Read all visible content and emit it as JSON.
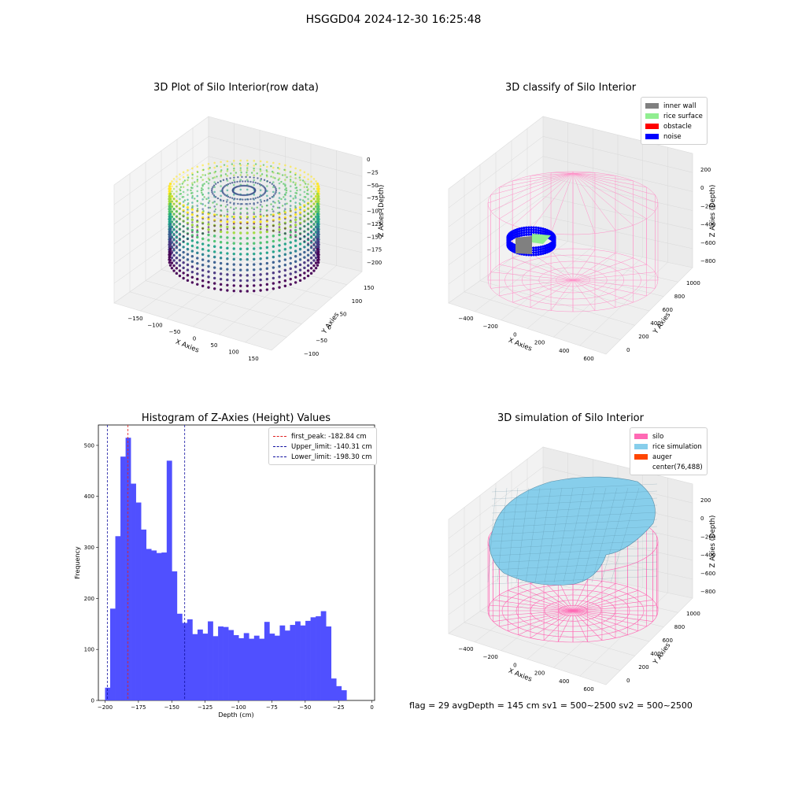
{
  "figure": {
    "suptitle": "HSGGD04 2024-12-30 16:25:48",
    "status_line": "flag = 29  avgDepth = 145 cm  sv1 = 500~2500  sv2 = 500~2500"
  },
  "colors": {
    "hist_bar": "#5050ff",
    "first_peak": "#e02020",
    "limits": "#1010a0",
    "inner_wall": "#808080",
    "rice_surface": "#90ee90",
    "obstacle": "#ff0000",
    "noise": "#0000ff",
    "silo": "#ff69b4",
    "rice_simulation": "#87ceeb",
    "auger": "#ff4500"
  },
  "chart_data": [
    {
      "type": "scatter",
      "projection": "3d",
      "title": "3D Plot of Silo Interior(row data)",
      "xlabel": "X Axies",
      "ylabel": "Y Axies",
      "zlabel": "Z Axies (Depth)",
      "xticks": [
        "−150",
        "−100",
        "−50",
        "0",
        "50",
        "100",
        "150"
      ],
      "yticks": [
        "−100",
        "−50",
        "0",
        "50",
        "100",
        "150"
      ],
      "zticks": [
        "0",
        "−25",
        "−50",
        "−75",
        "−100",
        "−125",
        "−150",
        "−175",
        "−200"
      ],
      "colormap": "viridis"
    },
    {
      "type": "scatter",
      "projection": "3d",
      "title": "3D classify of Silo Interior",
      "xlabel": "X Axies",
      "ylabel": "Y Axies",
      "zlabel": "Z Axies (Depth)",
      "xticks": [
        "−400",
        "−200",
        "0",
        "200",
        "400",
        "600"
      ],
      "yticks": [
        "0",
        "200",
        "400",
        "600",
        "800",
        "1000"
      ],
      "zticks": [
        "200",
        "0",
        "−200",
        "−400",
        "−600",
        "−800"
      ],
      "legend": [
        "inner wall",
        "rice surface",
        "obstacle",
        "noise"
      ],
      "legend_loc": "upper-right"
    },
    {
      "type": "bar",
      "title": "Histogram of Z-Axies (Height) Values",
      "xlabel": "Depth (cm)",
      "ylabel": "Frequency",
      "xlim": [
        -205,
        2
      ],
      "ylim": [
        0,
        540
      ],
      "xticks": [
        "−200",
        "−175",
        "−150",
        "−125",
        "−100",
        "−75",
        "−50",
        "−25",
        "0"
      ],
      "xtick_values": [
        -200,
        -175,
        -150,
        -125,
        -100,
        -75,
        -50,
        -25,
        0
      ],
      "yticks": [
        "0",
        "100",
        "200",
        "300",
        "400",
        "500"
      ],
      "ytick_values": [
        0,
        100,
        200,
        300,
        400,
        500
      ],
      "bin_start": -200,
      "bin_width": 3.85,
      "values": [
        25,
        180,
        322,
        478,
        515,
        425,
        388,
        335,
        297,
        294,
        289,
        290,
        470,
        253,
        170,
        152,
        159,
        130,
        139,
        131,
        155,
        126,
        145,
        144,
        138,
        128,
        122,
        132,
        121,
        127,
        121,
        154,
        131,
        127,
        147,
        137,
        148,
        155,
        147,
        156,
        163,
        165,
        175,
        145,
        43,
        28,
        20
      ],
      "lines": [
        {
          "label": "first_peak: -182.84 cm",
          "x": -182.84,
          "color": "#e02020"
        },
        {
          "label": "Upper_limit: -140.31 cm",
          "x": -140.31,
          "color": "#1010a0"
        },
        {
          "label": "Lower_limit: -198.30 cm",
          "x": -198.3,
          "color": "#1010a0"
        }
      ],
      "legend_loc": "upper-right"
    },
    {
      "type": "surface",
      "projection": "3d",
      "title": "3D simulation of Silo Interior",
      "xlabel": "X Axies",
      "ylabel": "Y Axies",
      "zlabel": "Z Axies (Depth)",
      "xticks": [
        "−400",
        "−200",
        "0",
        "200",
        "400",
        "600"
      ],
      "yticks": [
        "0",
        "200",
        "400",
        "600",
        "800",
        "1000"
      ],
      "zticks": [
        "200",
        "0",
        "−200",
        "−400",
        "−600",
        "−800"
      ],
      "legend": [
        "silo",
        "rice simulation",
        "auger",
        "center(76,488)"
      ],
      "legend_loc": "upper-right"
    }
  ]
}
